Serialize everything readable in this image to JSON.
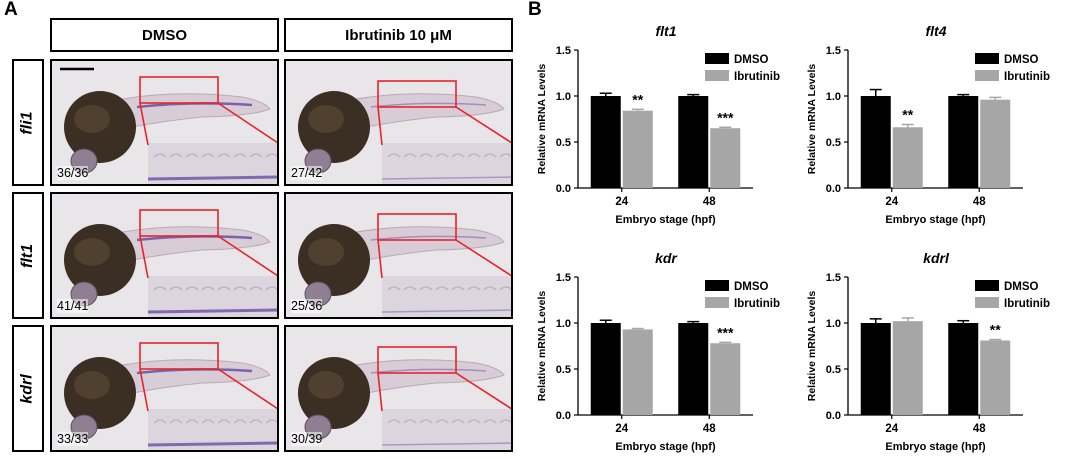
{
  "panel_a": {
    "letter": "A",
    "columns": [
      "DMSO",
      "Ibrutinib 10 μM"
    ],
    "rows": [
      {
        "gene": "fli1",
        "counts": [
          "36/36",
          "27/42"
        ]
      },
      {
        "gene": "flt1",
        "counts": [
          "41/41",
          "25/36"
        ]
      },
      {
        "gene": "kdrl",
        "counts": [
          "33/33",
          "30/39"
        ]
      }
    ]
  },
  "panel_b": {
    "letter": "B"
  },
  "colors": {
    "dmso": "#000000",
    "ibrutinib": "#a6a6a6",
    "highlight": "#e8242a",
    "stain": "#6a4fa0"
  },
  "chart_data": [
    {
      "type": "bar",
      "title": "flt1",
      "categories": [
        "24",
        "48"
      ],
      "xlabel": "Embryo stage (hpf)",
      "ylabel": "Relative mRNA Levels",
      "ylim": [
        0,
        1.5
      ],
      "yticks": [
        "0.0",
        "0.5",
        "1.0",
        "1.5"
      ],
      "legend": "top-right",
      "series": [
        {
          "name": "DMSO",
          "values": [
            1.0,
            1.0
          ],
          "errors": [
            0.03,
            0.015
          ]
        },
        {
          "name": "Ibrutinib",
          "values": [
            0.84,
            0.65
          ],
          "errors": [
            0.015,
            0.01
          ]
        }
      ],
      "annotations": [
        "**",
        "***"
      ]
    },
    {
      "type": "bar",
      "title": "flt4",
      "categories": [
        "24",
        "48"
      ],
      "xlabel": "Embryo stage (hpf)",
      "ylabel": "Relative mRNA Levels",
      "ylim": [
        0,
        1.5
      ],
      "yticks": [
        "0.0",
        "0.5",
        "1.0",
        "1.5"
      ],
      "legend": "top-right",
      "series": [
        {
          "name": "DMSO",
          "values": [
            1.0,
            1.0
          ],
          "errors": [
            0.07,
            0.015
          ]
        },
        {
          "name": "Ibrutinib",
          "values": [
            0.66,
            0.96
          ],
          "errors": [
            0.03,
            0.025
          ]
        }
      ],
      "annotations": [
        "**",
        ""
      ]
    },
    {
      "type": "bar",
      "title": "kdr",
      "categories": [
        "24",
        "48"
      ],
      "xlabel": "Embryo stage (hpf)",
      "ylabel": "Relative mRNA Levels",
      "ylim": [
        0,
        1.5
      ],
      "yticks": [
        "0.0",
        "0.5",
        "1.0",
        "1.5"
      ],
      "legend": "top-right",
      "series": [
        {
          "name": "DMSO",
          "values": [
            1.0,
            1.0
          ],
          "errors": [
            0.03,
            0.015
          ]
        },
        {
          "name": "Ibrutinib",
          "values": [
            0.93,
            0.78
          ],
          "errors": [
            0.01,
            0.01
          ]
        }
      ],
      "annotations": [
        "",
        "***"
      ]
    },
    {
      "type": "bar",
      "title": "kdrl",
      "categories": [
        "24",
        "48"
      ],
      "xlabel": "Embryo stage (hpf)",
      "ylabel": "Relative mRNA Levels",
      "ylim": [
        0,
        1.5
      ],
      "yticks": [
        "0.0",
        "0.5",
        "1.0",
        "1.5"
      ],
      "legend": "top-right",
      "series": [
        {
          "name": "DMSO",
          "values": [
            1.0,
            1.0
          ],
          "errors": [
            0.045,
            0.025
          ]
        },
        {
          "name": "Ibrutinib",
          "values": [
            1.02,
            0.81
          ],
          "errors": [
            0.035,
            0.01
          ]
        }
      ],
      "annotations": [
        "",
        "**"
      ]
    }
  ]
}
